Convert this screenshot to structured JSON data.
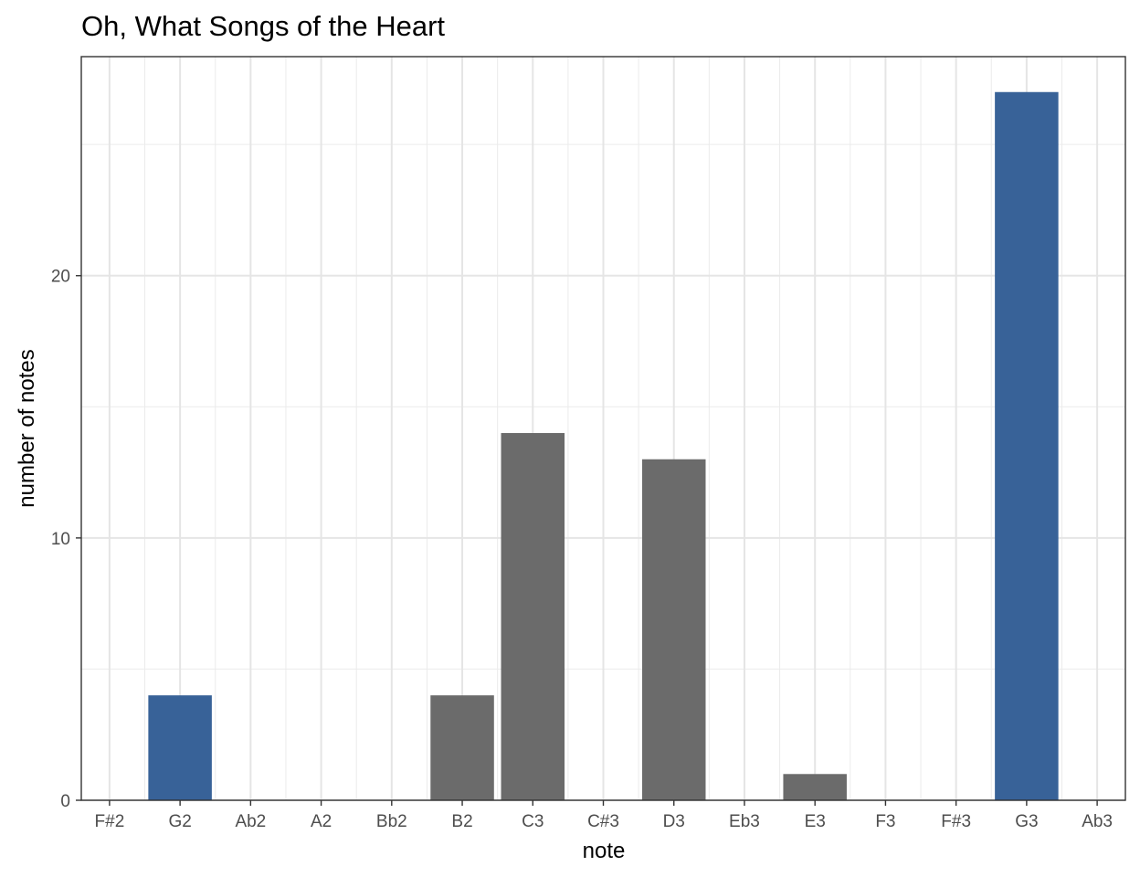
{
  "chart_data": {
    "type": "bar",
    "title": "Oh, What Songs of the Heart",
    "xlabel": "note",
    "ylabel": "number of notes",
    "categories": [
      "F#2",
      "G2",
      "Ab2",
      "A2",
      "Bb2",
      "B2",
      "C3",
      "C#3",
      "D3",
      "Eb3",
      "E3",
      "F3",
      "F#3",
      "G3",
      "Ab3"
    ],
    "values": [
      0,
      4,
      0,
      0,
      0,
      4,
      14,
      0,
      13,
      0,
      1,
      0,
      0,
      27,
      0
    ],
    "highlighted": [
      "G2",
      "G3"
    ],
    "colors": {
      "default": "#6b6b6b",
      "highlight": "#386298"
    },
    "ylim": [
      0,
      28.35
    ],
    "yticks": [
      0,
      10,
      20
    ],
    "grid": true,
    "legend": "none"
  }
}
